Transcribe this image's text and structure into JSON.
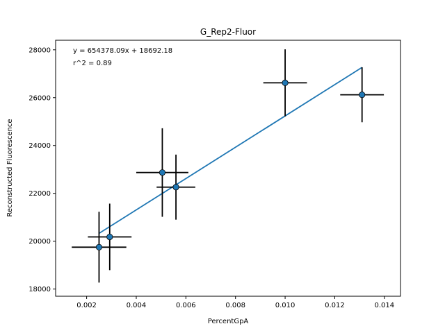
{
  "chart_data": {
    "type": "scatter",
    "title": "G_Rep2-Fluor",
    "xlabel": "PercentGpA",
    "ylabel": "Reconstructed Fluorescence",
    "xlim": [
      0.00075,
      0.01465
    ],
    "ylim": [
      17700,
      28400
    ],
    "xticks": [
      0.002,
      0.004,
      0.006,
      0.008,
      0.01,
      0.012,
      0.014
    ],
    "xtick_labels": [
      "0.002",
      "0.004",
      "0.006",
      "0.008",
      "0.010",
      "0.012",
      "0.014"
    ],
    "yticks": [
      18000,
      20000,
      22000,
      24000,
      26000,
      28000
    ],
    "ytick_labels": [
      "18000",
      "20000",
      "22000",
      "24000",
      "26000",
      "28000"
    ],
    "annotations": [
      "y = 654378.09x + 18692.18",
      "r^2 = 0.89"
    ],
    "points": [
      {
        "x": 0.0025,
        "y": 19750,
        "xerr": 0.0011,
        "yerr": 1480
      },
      {
        "x": 0.00293,
        "y": 20180,
        "xerr": 0.00088,
        "yerr": 1390
      },
      {
        "x": 0.00505,
        "y": 22870,
        "xerr": 0.00105,
        "yerr": 1850
      },
      {
        "x": 0.0056,
        "y": 22260,
        "xerr": 0.00078,
        "yerr": 1360
      },
      {
        "x": 0.01,
        "y": 26620,
        "xerr": 0.00088,
        "yerr": 1400
      },
      {
        "x": 0.0131,
        "y": 26120,
        "xerr": 0.00088,
        "yerr": 1150
      }
    ],
    "fit": {
      "slope": 654378.09,
      "intercept": 18692.18,
      "x_range": [
        0.0025,
        0.0131
      ]
    },
    "colors": {
      "point": "#1f77b4",
      "fit_line": "#1f77b4",
      "errorbar": "#000000"
    },
    "grid": false
  }
}
